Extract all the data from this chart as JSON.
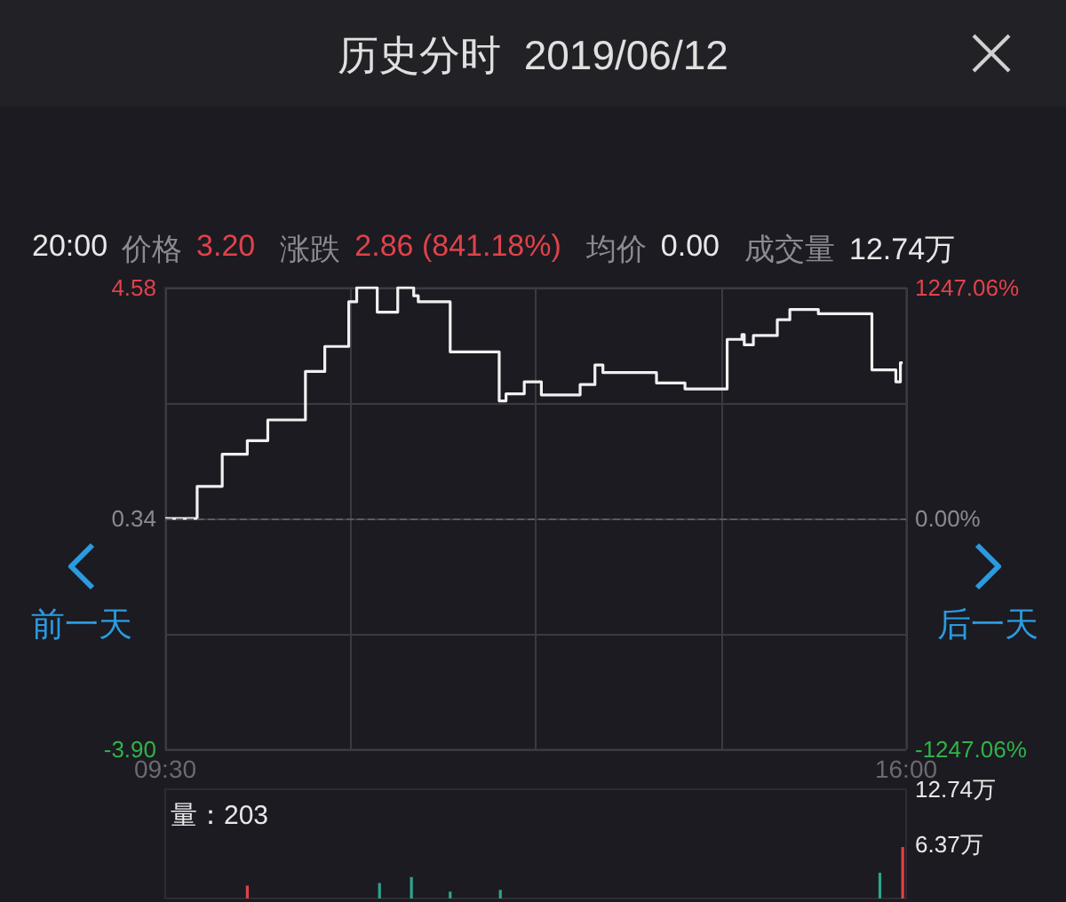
{
  "chart_data": [
    {
      "type": "step",
      "title": "历史分时  2019/06/12",
      "annotations": [
        "20:00",
        "价格",
        "3.20",
        "涨跌",
        "2.86 (841.18%)",
        "均价",
        "0.00",
        "成交量",
        "12.74万",
        "前一天",
        "后一天"
      ],
      "x": [
        9.5,
        9.78,
        10.0,
        10.22,
        10.4,
        10.73,
        10.9,
        11.11,
        11.18,
        11.36,
        11.54,
        11.68,
        11.72,
        12.0,
        12.43,
        12.49,
        12.65,
        12.8,
        13.14,
        13.27,
        13.34,
        13.81,
        14.06,
        14.43,
        14.56,
        14.58,
        14.66,
        14.87,
        14.98,
        15.23,
        15.7,
        15.91,
        15.95,
        15.97
      ],
      "values": [
        0.34,
        0.93,
        1.52,
        1.77,
        2.15,
        3.04,
        3.5,
        4.32,
        4.58,
        4.13,
        4.58,
        4.43,
        4.32,
        3.4,
        2.5,
        2.63,
        2.85,
        2.61,
        2.8,
        3.16,
        3.02,
        2.83,
        2.72,
        3.63,
        3.72,
        3.53,
        3.7,
        3.99,
        4.18,
        4.1,
        3.07,
        2.85,
        3.2,
        3.2
      ],
      "color": "#f0f0f0",
      "marker": "none",
      "xlim": [
        9.5,
        16
      ],
      "xticks": [
        {
          "value": 9.5,
          "label": "09:30"
        },
        {
          "value": 11.125,
          "label": null
        },
        {
          "value": 12.75,
          "label": null
        },
        {
          "value": 14.375,
          "label": null
        },
        {
          "value": 16,
          "label": "16:00"
        }
      ],
      "ylim": [
        -3.9,
        4.58
      ],
      "yticks": [
        {
          "value": -3.9,
          "label": "-3.90"
        },
        {
          "value": -1.78,
          "label": null
        },
        0.34,
        {
          "value": 2.46,
          "label": null
        },
        4.58
      ],
      "y2lim": [
        -1247.06,
        1247.06
      ],
      "y2ticks": [
        {
          "value": -1247.06,
          "label": "-1247.06%"
        },
        {
          "value": 0,
          "label": "0.00%"
        },
        {
          "value": 1247.06,
          "label": "1247.06%"
        }
      ],
      "ref_lines": [
        {
          "axis": "y",
          "value": 0.34,
          "color": "#5a5a60",
          "line_style": "dashed"
        }
      ],
      "grid": true
    },
    {
      "type": "bar",
      "annotations": [
        "量：203"
      ],
      "x": [
        10.22,
        11.38,
        11.66,
        12.0,
        12.44,
        15.77,
        15.97
      ],
      "values": [
        1.5,
        1.8,
        2.5,
        0.8,
        1.0,
        3.0,
        6.0
      ],
      "colors": [
        "#e0424a",
        "#2ba58f",
        "#2ba58f",
        "#2ba58f",
        "#2ba58f",
        "#2ba58f",
        "#e0424a"
      ],
      "xlim": [
        9.5,
        16
      ],
      "ylim": [
        0,
        12.74
      ],
      "yticks": [
        {
          "value": 6.37,
          "label": "6.37万"
        },
        {
          "value": 12.74,
          "label": "12.74万"
        }
      ],
      "tick_labels": "y"
    }
  ]
}
